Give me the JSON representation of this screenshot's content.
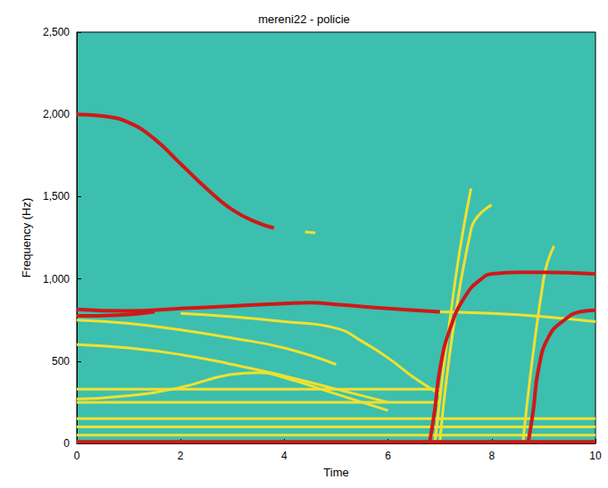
{
  "chart_data": {
    "type": "spectrogram",
    "title": "mereni22 - policie",
    "xlabel": "Time",
    "ylabel": "Frequency (Hz)",
    "xlim": [
      0,
      10
    ],
    "ylim": [
      0,
      2500
    ],
    "xticks": [
      0,
      2,
      4,
      6,
      8,
      10
    ],
    "yticks": [
      0,
      500,
      1000,
      1500,
      2000,
      2500
    ],
    "grid": false,
    "color": "#3cbfae",
    "series": [
      {
        "color": "#d01818",
        "x": [
          0,
          0.5,
          1,
          1.5,
          2,
          2.5,
          3,
          3.5,
          3.8
        ],
        "values": [
          2000,
          1990,
          1950,
          1850,
          1700,
          1550,
          1420,
          1340,
          1310
        ]
      },
      {
        "color": "#f0e030",
        "x": [
          4.4,
          4.6
        ],
        "values": [
          1285,
          1280
        ]
      },
      {
        "color": "#d01818",
        "x": [
          0,
          1,
          2,
          3,
          4,
          4.5,
          5,
          6,
          7
        ],
        "values": [
          815,
          805,
          820,
          835,
          850,
          855,
          845,
          820,
          800
        ]
      },
      {
        "color": "#d01818",
        "x": [
          0,
          0.8,
          1.5
        ],
        "values": [
          775,
          780,
          800
        ]
      },
      {
        "color": "#f0e030",
        "x": [
          7,
          8,
          9,
          10
        ],
        "values": [
          800,
          790,
          770,
          740
        ]
      },
      {
        "color": "#f0e030",
        "x": [
          2,
          3,
          4,
          5,
          5.5,
          6,
          6.5,
          7
        ],
        "values": [
          790,
          770,
          740,
          700,
          620,
          520,
          400,
          300
        ]
      },
      {
        "color": "#f0e030",
        "x": [
          0,
          1,
          2,
          3,
          4,
          5
        ],
        "values": [
          750,
          730,
          690,
          640,
          580,
          480
        ]
      },
      {
        "color": "#f0e030",
        "x": [
          0,
          1,
          2,
          3,
          4,
          5,
          6
        ],
        "values": [
          600,
          580,
          540,
          480,
          410,
          330,
          250
        ]
      },
      {
        "color": "#f0e030",
        "x": [
          0,
          1,
          2,
          3,
          3.5,
          4,
          5,
          6
        ],
        "values": [
          270,
          290,
          340,
          420,
          430,
          400,
          300,
          200
        ]
      },
      {
        "color": "#f0e030",
        "x": [
          6.9,
          7.3,
          7.6
        ],
        "values": [
          0,
          1000,
          1550
        ]
      },
      {
        "color": "#f0e030",
        "x": [
          7,
          7.6,
          8
        ],
        "values": [
          0,
          1300,
          1450
        ]
      },
      {
        "color": "#f0e030",
        "x": [
          8.6,
          9,
          9.2
        ],
        "values": [
          0,
          1000,
          1200
        ]
      },
      {
        "color": "#d01818",
        "x": [
          6.8,
          6.9,
          7,
          7.2,
          7.5,
          7.8,
          8,
          8.5,
          9,
          10
        ],
        "values": [
          0,
          200,
          450,
          700,
          900,
          1000,
          1030,
          1040,
          1040,
          1030
        ]
      },
      {
        "color": "#d01818",
        "x": [
          8.7,
          8.8,
          8.9,
          9.1,
          9.4,
          9.7,
          10
        ],
        "values": [
          0,
          200,
          450,
          650,
          750,
          800,
          810
        ]
      },
      {
        "color": "#f0e030",
        "x": [
          0,
          10
        ],
        "values": [
          50,
          50
        ]
      },
      {
        "color": "#f0e030",
        "x": [
          0,
          10
        ],
        "values": [
          100,
          100
        ]
      },
      {
        "color": "#f0e030",
        "x": [
          0,
          10
        ],
        "values": [
          150,
          150
        ]
      },
      {
        "color": "#f0e030",
        "x": [
          0,
          7
        ],
        "values": [
          250,
          250
        ]
      },
      {
        "color": "#f0e030",
        "x": [
          0,
          7
        ],
        "values": [
          330,
          330
        ]
      },
      {
        "color": "#d01818",
        "x": [
          0,
          10
        ],
        "values": [
          10,
          10
        ]
      }
    ]
  }
}
